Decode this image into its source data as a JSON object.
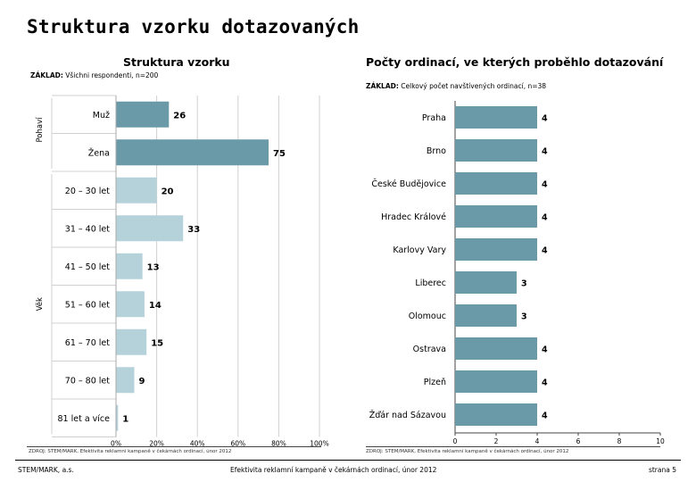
{
  "page_title": "Struktura vzorku dotazovaných",
  "footer": {
    "left": "STEM/MARK, a.s.",
    "center": "Efektivita reklamní kampaně v čekárnách ordinací, únor 2012",
    "right": "strana 5"
  },
  "colors": {
    "dark_bar": "#6a9aa8",
    "light_bar": "#b5d2db",
    "grid": "#d0d0d0"
  },
  "left_chart": {
    "base_label": "ZÁKLAD:",
    "base_text": " Všichni respondenti, n=200",
    "source": "ZDROJ: STEM/MARK, Efektivita reklamní kampaně v čekárnách ordinací, únor 2012"
  },
  "right_chart": {
    "base_label": "ZÁKLAD:",
    "base_text": " Celkový počet navštívených ordinací, n=38",
    "source": "ZDROJ: STEM/MARK, Efektivita reklamní kampaně v čekárnách ordinací, únor 2012"
  },
  "chart_data": [
    {
      "type": "bar",
      "orientation": "horizontal",
      "title": "Struktura vzorku",
      "xlim": [
        0,
        100
      ],
      "xticks": [
        "0%",
        "20%",
        "40%",
        "60%",
        "80%",
        "100%"
      ],
      "groups": [
        {
          "name": "Pohaví",
          "start": 0,
          "count": 2
        },
        {
          "name": "Věk",
          "start": 2,
          "count": 7
        }
      ],
      "categories": [
        "Muž",
        "Žena",
        "20 – 30 let",
        "31 – 40 let",
        "41 – 50 let",
        "51 – 60 let",
        "61 – 70 let",
        "70 – 80 let",
        "81 let a více"
      ],
      "values": [
        26,
        75,
        20,
        33,
        13,
        14,
        15,
        9,
        1
      ],
      "bar_color_index": [
        "dark",
        "dark",
        "light",
        "light",
        "light",
        "light",
        "light",
        "light",
        "light"
      ]
    },
    {
      "type": "bar",
      "orientation": "horizontal",
      "title": "Počty ordinací, ve kterých proběhlo dotazování",
      "xlim": [
        0,
        10
      ],
      "xticks": [
        "0",
        "2",
        "4",
        "6",
        "8",
        "10"
      ],
      "categories": [
        "Praha",
        "Brno",
        "České Budějovice",
        "Hradec Králové",
        "Karlovy Vary",
        "Liberec",
        "Olomouc",
        "Ostrava",
        "Plzeň",
        "Žďár nad Sázavou"
      ],
      "values": [
        4,
        4,
        4,
        4,
        4,
        3,
        3,
        4,
        4,
        4
      ]
    }
  ]
}
